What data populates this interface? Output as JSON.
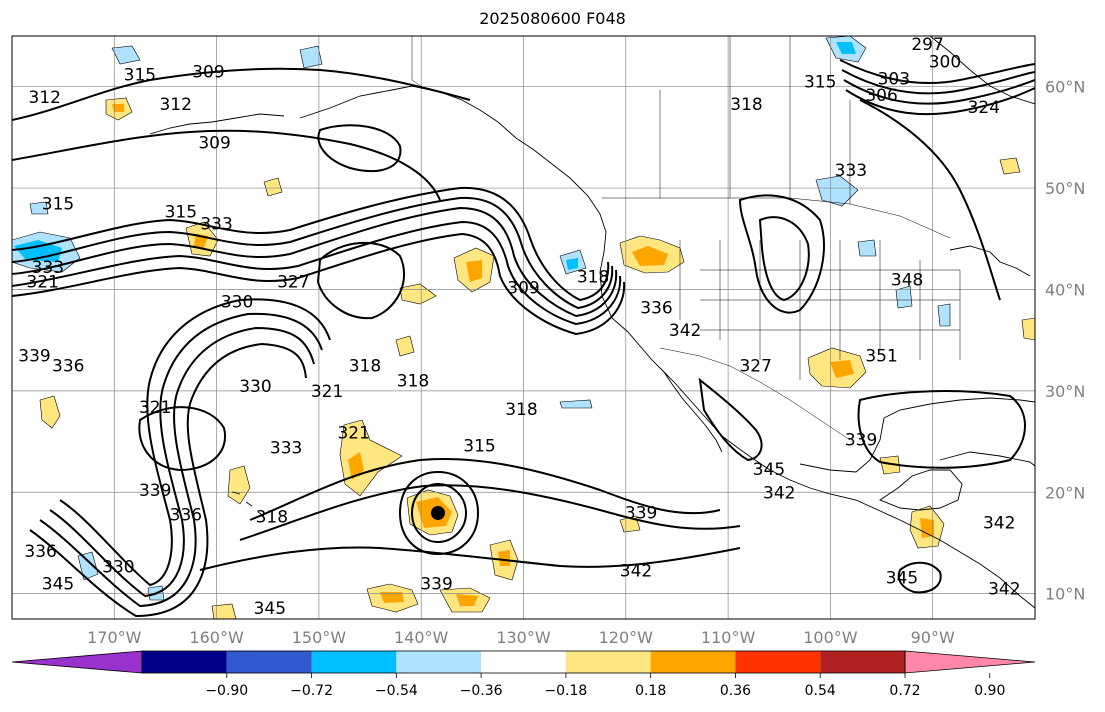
{
  "title": "2025080600 F048",
  "map": {
    "projection": "cylindrical",
    "extent": {
      "lon": [
        -180,
        -80
      ],
      "lat": [
        7.5,
        65
      ]
    },
    "lon_ticks": [
      {
        "lon": -170,
        "label": "170°W"
      },
      {
        "lon": -160,
        "label": "160°W"
      },
      {
        "lon": -150,
        "label": "150°W"
      },
      {
        "lon": -140,
        "label": "140°W"
      },
      {
        "lon": -130,
        "label": "130°W"
      },
      {
        "lon": -120,
        "label": "120°W"
      },
      {
        "lon": -110,
        "label": "110°W"
      },
      {
        "lon": -100,
        "label": "100°W"
      },
      {
        "lon": -90,
        "label": "90°W"
      }
    ],
    "lat_ticks": [
      {
        "lat": 60,
        "label": "60°N"
      },
      {
        "lat": 50,
        "label": "50°N"
      },
      {
        "lat": 40,
        "label": "40°N"
      },
      {
        "lat": 30,
        "label": "30°N"
      },
      {
        "lat": 20,
        "label": "20°N"
      },
      {
        "lat": 10,
        "label": "10°N"
      }
    ],
    "gridlines": true,
    "contour_labels": [
      {
        "text": "315",
        "lon": -167.5,
        "lat": 61.2
      },
      {
        "text": "312",
        "lon": -176.8,
        "lat": 59.0
      },
      {
        "text": "312",
        "lon": -164.0,
        "lat": 58.3
      },
      {
        "text": "309",
        "lon": -160.8,
        "lat": 61.5
      },
      {
        "text": "309",
        "lon": -160.2,
        "lat": 54.5
      },
      {
        "text": "315",
        "lon": -175.5,
        "lat": 48.5
      },
      {
        "text": "315",
        "lon": -163.5,
        "lat": 47.7
      },
      {
        "text": "333",
        "lon": -160.0,
        "lat": 46.5
      },
      {
        "text": "333",
        "lon": -176.5,
        "lat": 42.2
      },
      {
        "text": "321",
        "lon": -177.0,
        "lat": 40.8
      },
      {
        "text": "327",
        "lon": -152.5,
        "lat": 40.8
      },
      {
        "text": "330",
        "lon": -158.0,
        "lat": 38.8
      },
      {
        "text": "339",
        "lon": -177.8,
        "lat": 33.5
      },
      {
        "text": "336",
        "lon": -174.5,
        "lat": 32.5
      },
      {
        "text": "330",
        "lon": -156.2,
        "lat": 30.5
      },
      {
        "text": "318",
        "lon": -145.5,
        "lat": 32.5
      },
      {
        "text": "318",
        "lon": -140.8,
        "lat": 31.0
      },
      {
        "text": "321",
        "lon": -149.2,
        "lat": 30.0
      },
      {
        "text": "321",
        "lon": -166.0,
        "lat": 28.4
      },
      {
        "text": "318",
        "lon": -130.2,
        "lat": 28.2
      },
      {
        "text": "321",
        "lon": -146.6,
        "lat": 25.9
      },
      {
        "text": "333",
        "lon": -153.2,
        "lat": 24.4
      },
      {
        "text": "315",
        "lon": -134.3,
        "lat": 24.6
      },
      {
        "text": "339",
        "lon": -166.0,
        "lat": 20.2
      },
      {
        "text": "336",
        "lon": -163.0,
        "lat": 17.8
      },
      {
        "text": "318",
        "lon": -154.6,
        "lat": 17.6
      },
      {
        "text": "336",
        "lon": -177.2,
        "lat": 14.2
      },
      {
        "text": "330",
        "lon": -169.6,
        "lat": 12.7
      },
      {
        "text": "345",
        "lon": -175.5,
        "lat": 11.0
      },
      {
        "text": "339",
        "lon": -138.5,
        "lat": 11.0
      },
      {
        "text": "345",
        "lon": -154.8,
        "lat": 8.6
      },
      {
        "text": "342",
        "lon": -144.6,
        "lat": 6.2
      },
      {
        "text": "342",
        "lon": -119.0,
        "lat": 12.3
      },
      {
        "text": "339",
        "lon": -118.5,
        "lat": 18.0
      },
      {
        "text": "309",
        "lon": -130.0,
        "lat": 40.2
      },
      {
        "text": "318",
        "lon": -123.2,
        "lat": 41.3
      },
      {
        "text": "336",
        "lon": -117.0,
        "lat": 38.2
      },
      {
        "text": "342",
        "lon": -114.2,
        "lat": 36.0
      },
      {
        "text": "327",
        "lon": -107.3,
        "lat": 32.5
      },
      {
        "text": "318",
        "lon": -108.2,
        "lat": 58.3
      },
      {
        "text": "333",
        "lon": -98.0,
        "lat": 51.8
      },
      {
        "text": "351",
        "lon": -95.0,
        "lat": 33.5
      },
      {
        "text": "348",
        "lon": -92.5,
        "lat": 41.0
      },
      {
        "text": "339",
        "lon": -97.0,
        "lat": 25.2
      },
      {
        "text": "342",
        "lon": -105.0,
        "lat": 20.0
      },
      {
        "text": "345",
        "lon": -106.0,
        "lat": 22.3
      },
      {
        "text": "342",
        "lon": -83.5,
        "lat": 17.0
      },
      {
        "text": "345",
        "lon": -93.0,
        "lat": 11.6
      },
      {
        "text": "339",
        "lon": -92.0,
        "lat": 6.2
      },
      {
        "text": "342",
        "lon": -83.0,
        "lat": 10.5
      },
      {
        "text": "297",
        "lon": -90.5,
        "lat": 64.2
      },
      {
        "text": "300",
        "lon": -88.8,
        "lat": 62.5
      },
      {
        "text": "303",
        "lon": -93.8,
        "lat": 60.8
      },
      {
        "text": "306",
        "lon": -95.0,
        "lat": 59.2
      },
      {
        "text": "324",
        "lon": -85.0,
        "lat": 58.0
      },
      {
        "text": "315",
        "lon": -101.0,
        "lat": 60.5
      }
    ]
  },
  "colorbar": {
    "colors": [
      "#9932cc",
      "#00008b",
      "#3158cc",
      "#00bfff",
      "#aee2ff",
      "#ffffff",
      "#ffe680",
      "#ffa500",
      "#ff3300",
      "#b22222",
      "#ff88aa"
    ],
    "tick_labels": [
      "−0.90",
      "−0.72",
      "−0.54",
      "−0.36",
      "−0.18",
      "0.18",
      "0.36",
      "0.54",
      "0.72",
      "0.90"
    ]
  }
}
